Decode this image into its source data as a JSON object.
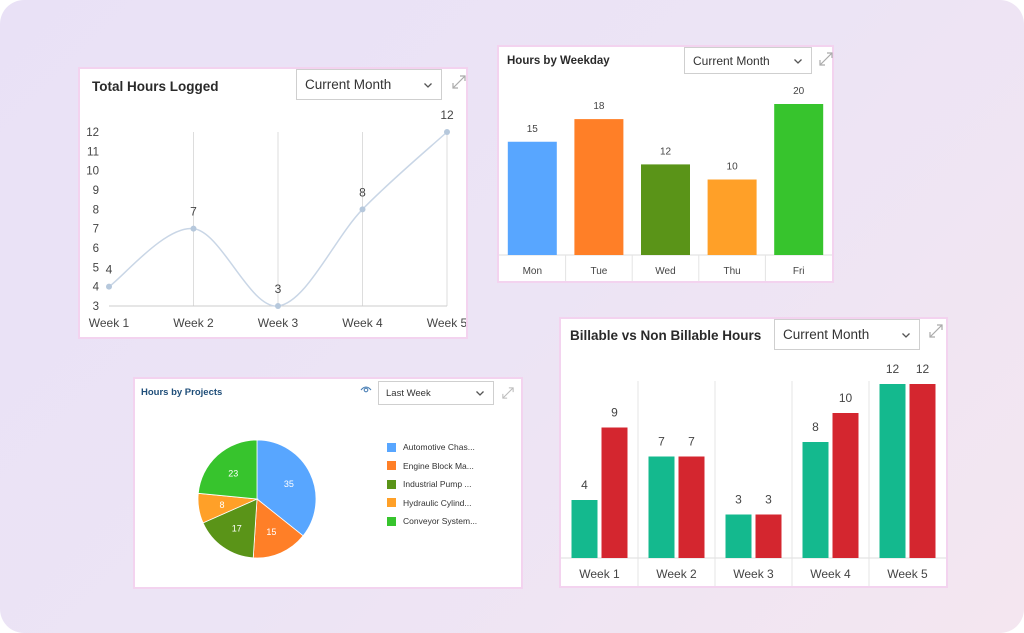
{
  "colors": {
    "line": "#c9d6e6",
    "point": "#b6c8dc",
    "billable": "#14b98e",
    "non_billable": "#d4262f"
  },
  "cards": {
    "total_hours": {
      "title": "Total Hours Logged",
      "filter": "Current Month",
      "expand_icon": "expand-icon"
    },
    "weekday": {
      "title": "Hours by Weekday",
      "filter": "Current Month",
      "expand_icon": "expand-icon"
    },
    "projects": {
      "title": "Hours by Projects",
      "filter": "Last Week",
      "visibility_icon": "eye-icon",
      "expand_icon": "expand-icon"
    },
    "billable": {
      "title": "Billable vs Non Billable Hours",
      "filter": "Current Month",
      "expand_icon": "expand-icon"
    }
  },
  "chart_data": [
    {
      "type": "line",
      "title": "Total Hours Logged",
      "categories": [
        "Week 1",
        "Week 2",
        "Week 3",
        "Week 4",
        "Week 5"
      ],
      "values": [
        4,
        7,
        3,
        8,
        12
      ],
      "y_ticks": [
        3,
        4,
        5,
        6,
        7,
        8,
        9,
        10,
        11,
        12
      ],
      "ylim": [
        3,
        12
      ],
      "grid": "vertical",
      "smooth": true
    },
    {
      "type": "bar",
      "title": "Hours by Weekday",
      "categories": [
        "Mon",
        "Tue",
        "Wed",
        "Thu",
        "Fri"
      ],
      "values": [
        15,
        18,
        12,
        10,
        20
      ],
      "colors": [
        "#58a6ff",
        "#ff7f27",
        "#5a9418",
        "#ffa028",
        "#37c42d"
      ],
      "ylim": [
        0,
        20
      ]
    },
    {
      "type": "pie",
      "title": "Hours by Projects",
      "labels": [
        "Automotive Chas...",
        "Engine Block Ma...",
        "Industrial Pump ...",
        "Hydraulic Cylind...",
        "Conveyor System..."
      ],
      "values": [
        35,
        15,
        17,
        8,
        23
      ],
      "colors": [
        "#58a6ff",
        "#ff7f27",
        "#5a9418",
        "#ffa028",
        "#37c42d"
      ],
      "legend": "right"
    },
    {
      "type": "bar",
      "title": "Billable vs Non Billable Hours",
      "categories": [
        "Week 1",
        "Week 2",
        "Week 3",
        "Week 4",
        "Week 5"
      ],
      "series": [
        {
          "values": [
            4,
            7,
            3,
            8,
            12
          ]
        },
        {
          "values": [
            9,
            7,
            3,
            10,
            12
          ]
        }
      ],
      "ylim": [
        0,
        12
      ]
    }
  ]
}
